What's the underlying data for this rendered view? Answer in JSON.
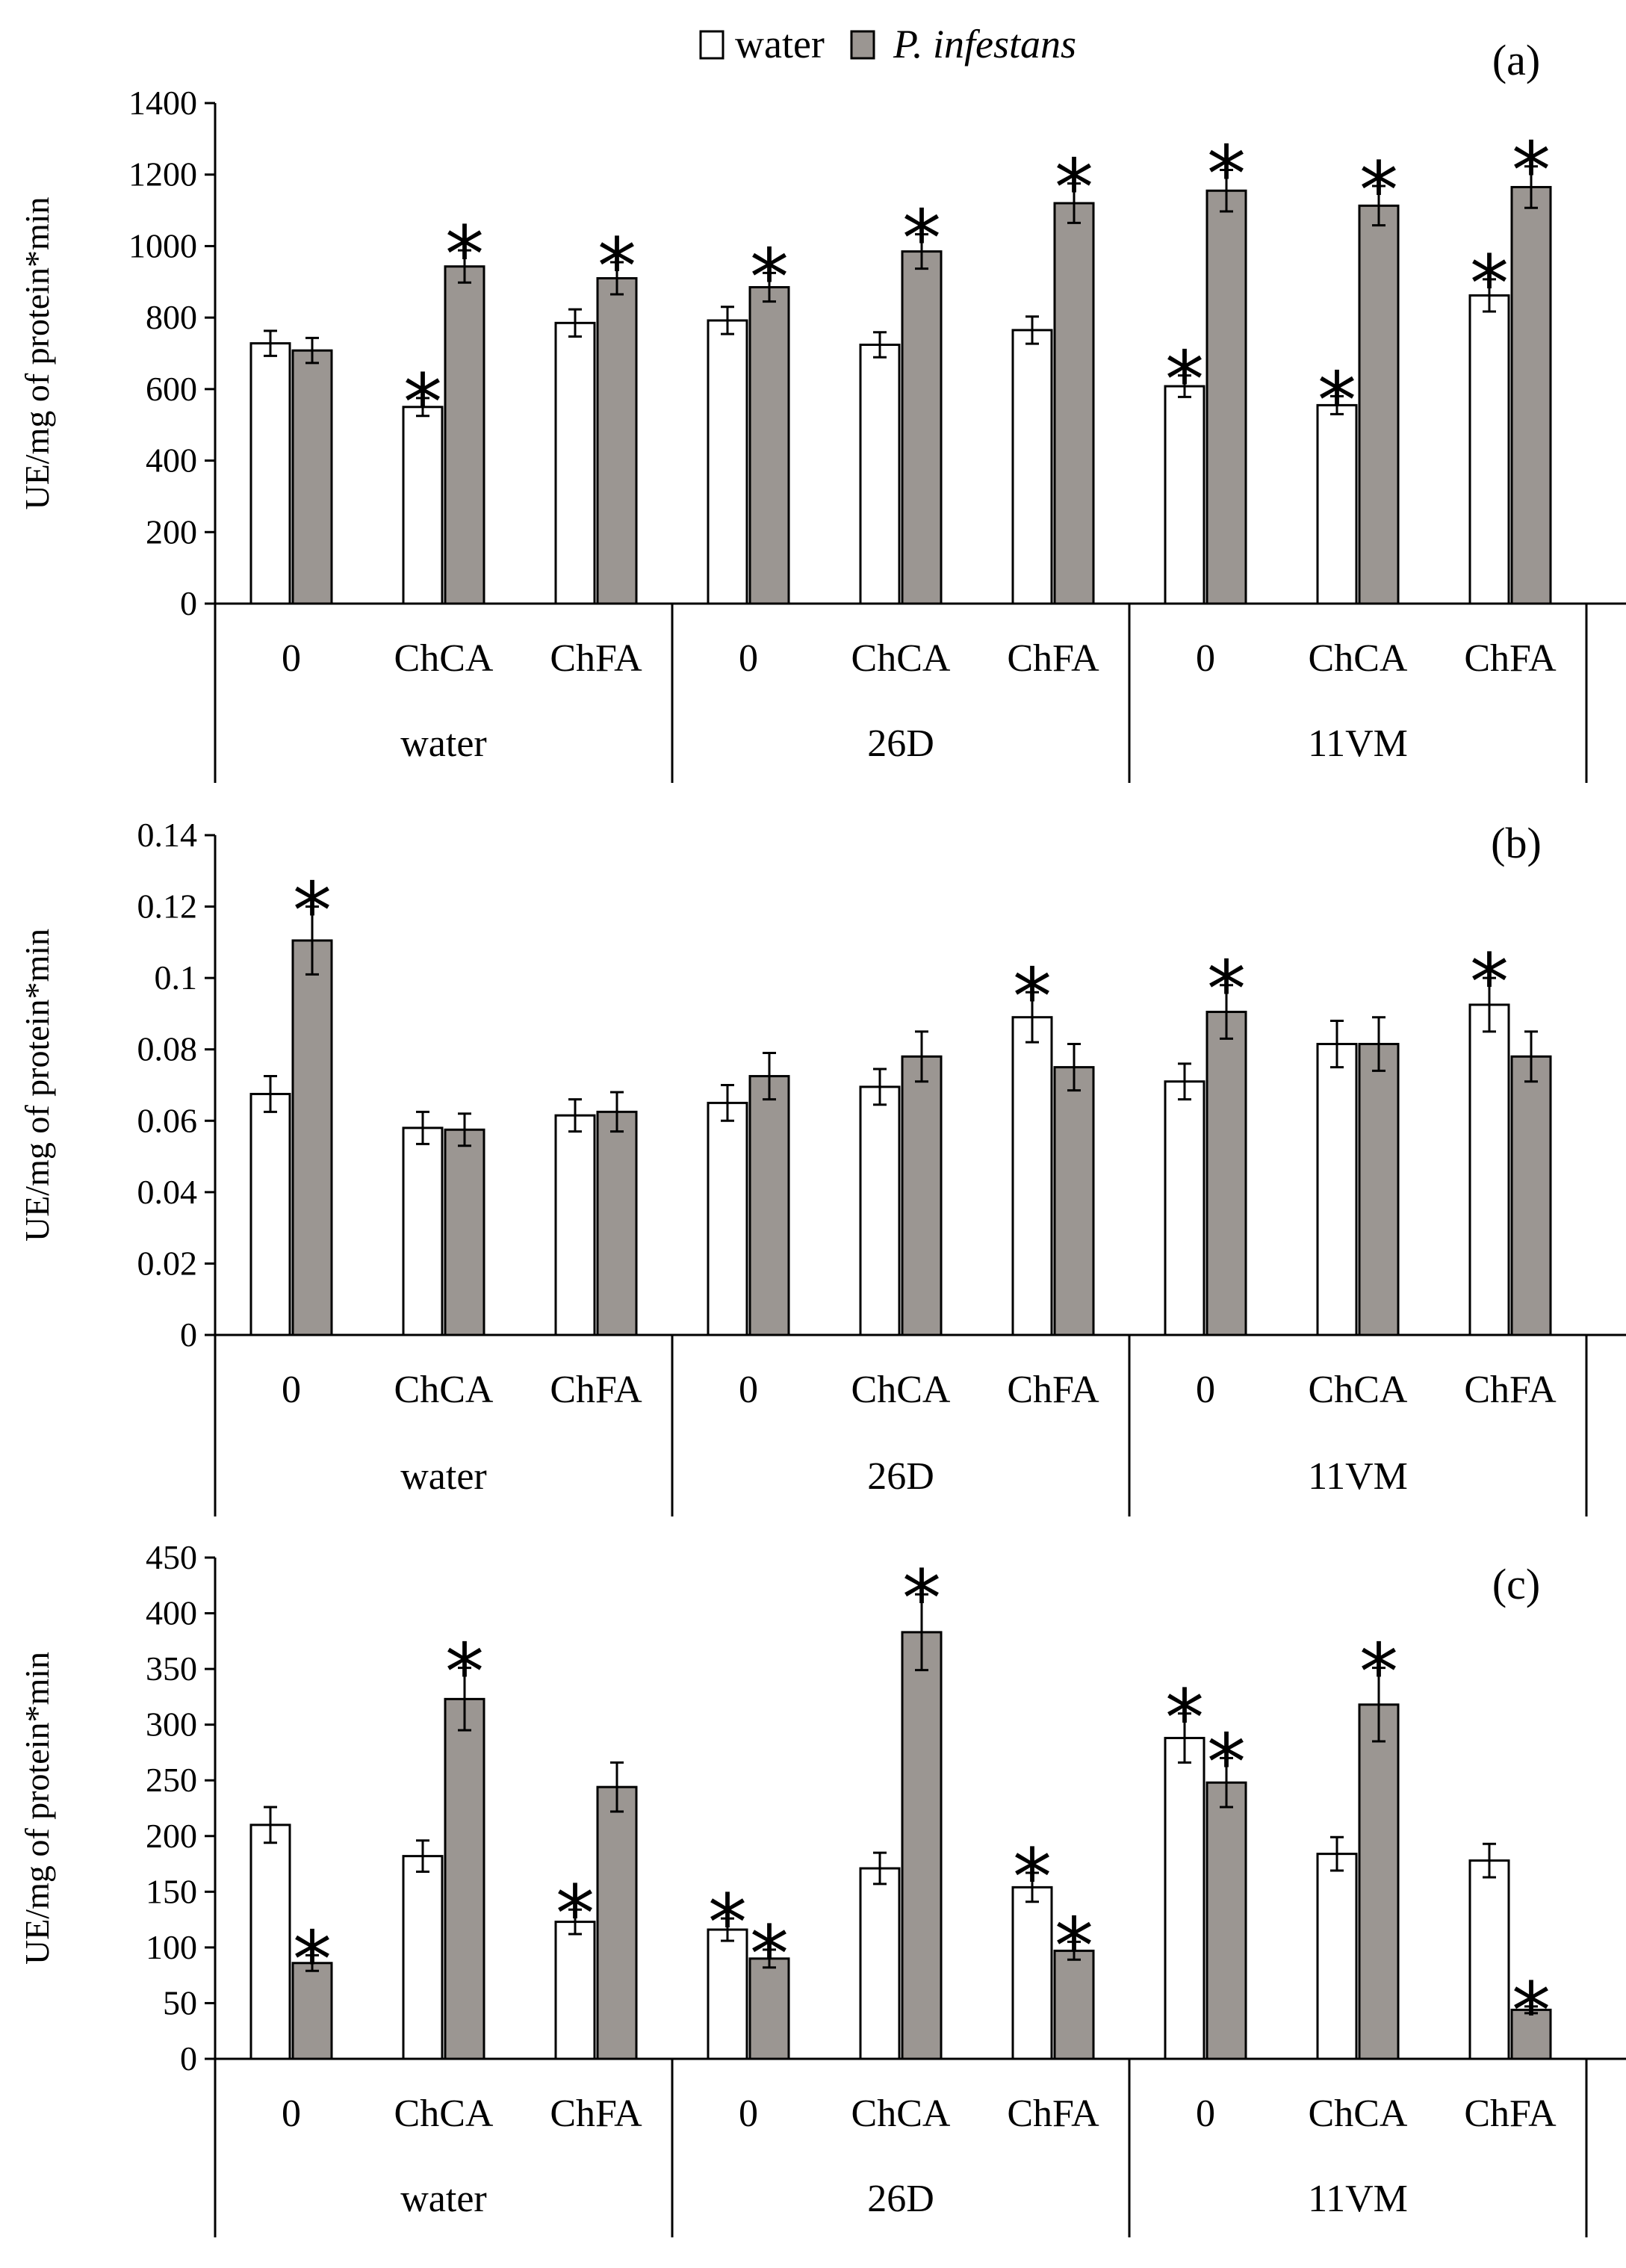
{
  "legend": {
    "water_label": "water",
    "infected_label": "P. infestans",
    "water_color": "#ffffff",
    "infected_color": "#9b9692"
  },
  "chart_data": [
    {
      "type": "bar",
      "panel_label": "(a)",
      "ylabel": "UE/mg of protein*min",
      "ylim": [
        0,
        1400
      ],
      "yticks": [
        "0",
        "200",
        "400",
        "600",
        "800",
        "1000",
        "1200",
        "1400"
      ],
      "groups": [
        "water",
        "26D",
        "11VM"
      ],
      "categories": [
        "0",
        "ChCA",
        "ChFA",
        "0",
        "ChCA",
        "ChFA",
        "0",
        "ChCA",
        "ChFA"
      ],
      "series": [
        {
          "name": "water",
          "values": [
            728,
            550,
            785,
            792,
            724,
            765,
            608,
            555,
            862
          ],
          "errors": [
            35,
            25,
            38,
            38,
            35,
            38,
            30,
            25,
            45
          ],
          "significant": [
            false,
            true,
            false,
            false,
            false,
            false,
            true,
            true,
            true
          ]
        },
        {
          "name": "P. infestans",
          "values": [
            708,
            943,
            910,
            885,
            985,
            1120,
            1155,
            1113,
            1165
          ],
          "errors": [
            35,
            45,
            45,
            40,
            48,
            55,
            58,
            55,
            58
          ],
          "significant": [
            false,
            true,
            true,
            true,
            true,
            true,
            true,
            true,
            true
          ]
        }
      ]
    },
    {
      "type": "bar",
      "panel_label": "(b)",
      "ylabel": "UE/mg of protein*min",
      "ylim": [
        0,
        0.14
      ],
      "yticks": [
        "0",
        "0.02",
        "0.04",
        "0.06",
        "0.08",
        "0.1",
        "0.12",
        "0.14"
      ],
      "groups": [
        "water",
        "26D",
        "11VM"
      ],
      "categories": [
        "0",
        "ChCA",
        "ChFA",
        "0",
        "ChCA",
        "ChFA",
        "0",
        "ChCA",
        "ChFA"
      ],
      "series": [
        {
          "name": "water",
          "values": [
            0.0675,
            0.058,
            0.0615,
            0.065,
            0.0695,
            0.089,
            0.071,
            0.0815,
            0.0925
          ],
          "errors": [
            0.005,
            0.0045,
            0.0045,
            0.005,
            0.005,
            0.007,
            0.005,
            0.0065,
            0.0075
          ],
          "significant": [
            false,
            false,
            false,
            false,
            false,
            true,
            false,
            false,
            true
          ]
        },
        {
          "name": "P. infestans",
          "values": [
            0.1105,
            0.0575,
            0.0625,
            0.0725,
            0.078,
            0.075,
            0.0905,
            0.0815,
            0.078
          ],
          "errors": [
            0.0095,
            0.0045,
            0.0055,
            0.0065,
            0.007,
            0.0065,
            0.0075,
            0.0075,
            0.007
          ],
          "significant": [
            true,
            false,
            false,
            false,
            false,
            false,
            true,
            false,
            false
          ]
        }
      ]
    },
    {
      "type": "bar",
      "panel_label": "(c)",
      "ylabel": "UE/mg of protein*min",
      "ylim": [
        0,
        450
      ],
      "yticks": [
        "0",
        "50",
        "100",
        "150",
        "200",
        "250",
        "300",
        "350",
        "400",
        "450"
      ],
      "groups": [
        "water",
        "26D",
        "11VM"
      ],
      "categories": [
        "0",
        "ChCA",
        "ChFA",
        "0",
        "ChCA",
        "ChFA",
        "0",
        "ChCA",
        "ChFA"
      ],
      "series": [
        {
          "name": "water",
          "values": [
            210,
            182,
            123,
            116,
            171,
            154,
            288,
            184,
            178
          ],
          "errors": [
            16,
            14,
            11,
            10,
            14,
            13,
            22,
            15,
            15
          ],
          "significant": [
            false,
            false,
            true,
            true,
            false,
            true,
            true,
            false,
            false
          ]
        },
        {
          "name": "P. infestans",
          "values": [
            86,
            323,
            244,
            90,
            383,
            97,
            248,
            318,
            44
          ],
          "errors": [
            7,
            28,
            22,
            8,
            34,
            8,
            22,
            33,
            3
          ],
          "significant": [
            true,
            true,
            false,
            true,
            true,
            true,
            true,
            true,
            true
          ]
        }
      ]
    }
  ]
}
